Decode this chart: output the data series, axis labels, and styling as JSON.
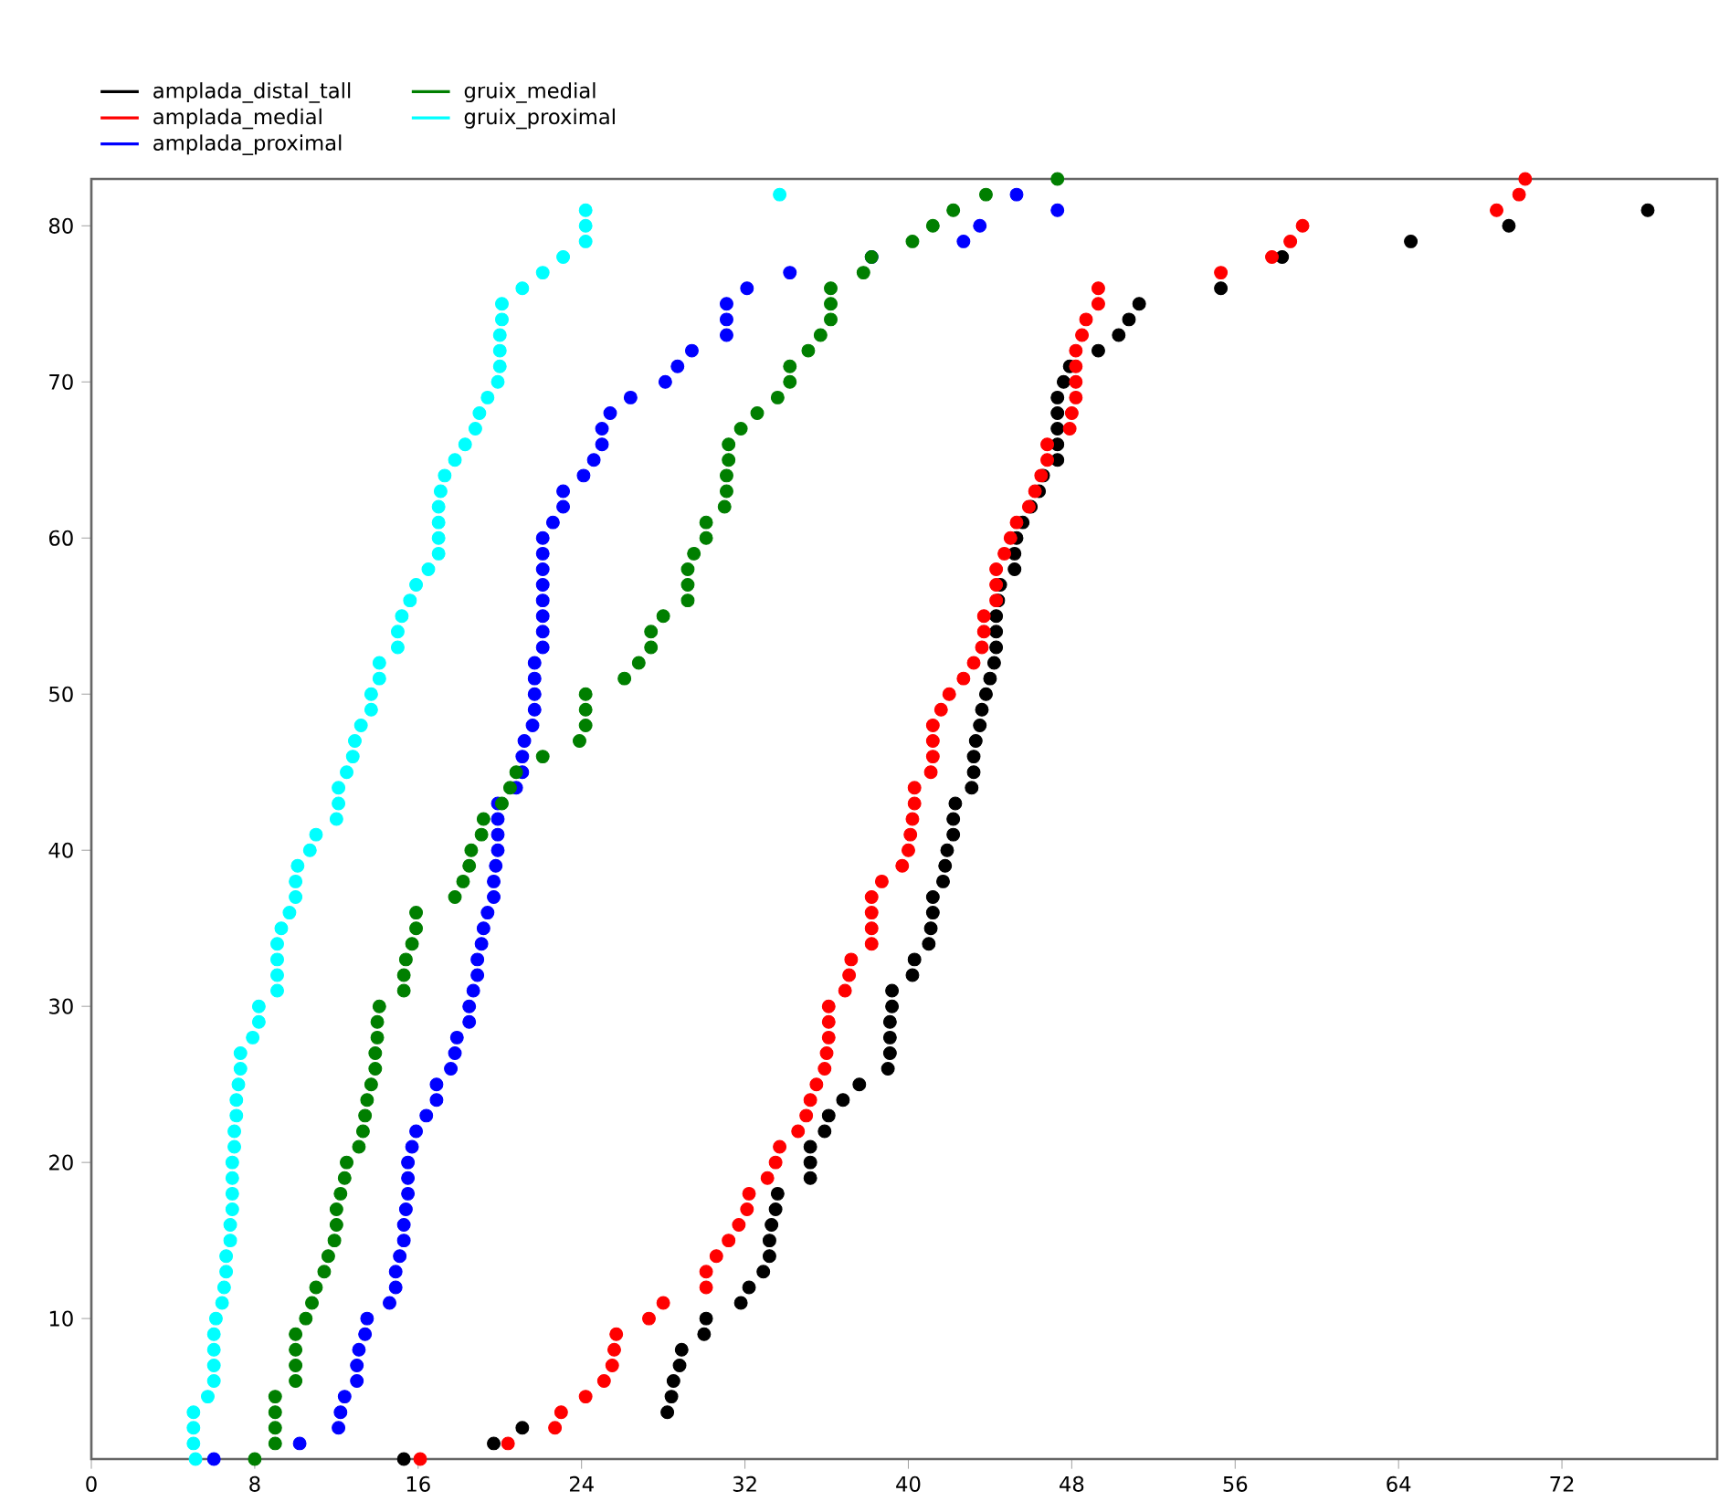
{
  "chart_data": {
    "type": "scatter",
    "legend": "top left",
    "xlim": [
      0,
      79.6
    ],
    "ylim": [
      1,
      83
    ],
    "xticks": [
      0,
      8,
      16,
      24,
      32,
      40,
      48,
      56,
      64,
      72
    ],
    "yticks": [
      10,
      20,
      30,
      40,
      50,
      60,
      70,
      80
    ],
    "series": [
      {
        "name": "amplada_distal_tall",
        "color": "#000000",
        "x": [
          15.3,
          19.7,
          21.1,
          28.2,
          28.4,
          28.5,
          28.8,
          28.9,
          30.0,
          30.1,
          31.8,
          32.2,
          32.9,
          33.2,
          33.2,
          33.3,
          33.5,
          33.6,
          35.2,
          35.2,
          35.2,
          35.9,
          36.1,
          36.8,
          37.6,
          39.0,
          39.1,
          39.1,
          39.1,
          39.2,
          39.2,
          40.2,
          40.3,
          41.0,
          41.1,
          41.2,
          41.2,
          41.7,
          41.8,
          41.9,
          42.2,
          42.2,
          42.3,
          43.1,
          43.2,
          43.2,
          43.3,
          43.5,
          43.6,
          43.8,
          44.0,
          44.2,
          44.3,
          44.3,
          44.3,
          44.4,
          44.5,
          45.2,
          45.2,
          45.3,
          45.6,
          46.0,
          46.4,
          46.6,
          47.3,
          47.3,
          47.3,
          47.3,
          47.3,
          47.6,
          47.9,
          49.3,
          50.3,
          50.8,
          51.3,
          55.3,
          58.3,
          64.6,
          69.4,
          76.2
        ],
        "values": [
          1,
          2,
          3,
          4,
          5,
          6,
          7,
          8,
          9,
          10,
          11,
          12,
          13,
          14,
          15,
          16,
          17,
          18,
          19,
          20,
          21,
          22,
          23,
          24,
          25,
          26,
          27,
          28,
          29,
          30,
          31,
          32,
          33,
          34,
          35,
          36,
          37,
          38,
          39,
          40,
          41,
          42,
          43,
          44,
          45,
          46,
          47,
          48,
          49,
          50,
          51,
          52,
          53,
          54,
          55,
          56,
          57,
          58,
          59,
          60,
          61,
          62,
          63,
          64,
          65,
          66,
          67,
          68,
          69,
          70,
          71,
          72,
          73,
          74,
          75,
          76,
          78,
          79,
          80,
          81
        ]
      },
      {
        "name": "amplada_medial",
        "color": "#ff0000",
        "x": [
          16.1,
          20.4,
          22.7,
          23.0,
          24.2,
          25.1,
          25.5,
          25.6,
          25.7,
          27.3,
          28.0,
          30.1,
          30.1,
          30.6,
          31.2,
          31.7,
          32.1,
          32.2,
          33.1,
          33.5,
          33.7,
          34.6,
          35.0,
          35.2,
          35.5,
          35.9,
          36.0,
          36.1,
          36.1,
          36.1,
          36.9,
          37.1,
          37.2,
          38.2,
          38.2,
          38.2,
          38.2,
          38.7,
          39.7,
          40.0,
          40.1,
          40.2,
          40.3,
          40.3,
          41.1,
          41.2,
          41.2,
          41.2,
          41.6,
          42.0,
          42.7,
          43.2,
          43.6,
          43.7,
          43.7,
          44.3,
          44.3,
          44.3,
          44.7,
          45.0,
          45.3,
          45.9,
          46.2,
          46.5,
          46.8,
          46.8,
          47.9,
          48.0,
          48.2,
          48.2,
          48.2,
          48.2,
          48.5,
          48.7,
          49.3,
          49.3,
          55.3,
          57.8,
          58.7,
          59.3,
          68.8,
          69.9,
          70.2
        ],
        "values": [
          1,
          2,
          3,
          4,
          5,
          6,
          7,
          8,
          9,
          10,
          11,
          12,
          13,
          14,
          15,
          16,
          17,
          18,
          19,
          20,
          21,
          22,
          23,
          24,
          25,
          26,
          27,
          28,
          29,
          30,
          31,
          32,
          33,
          34,
          35,
          36,
          37,
          38,
          39,
          40,
          41,
          42,
          43,
          44,
          45,
          46,
          47,
          48,
          49,
          50,
          51,
          52,
          53,
          54,
          55,
          56,
          57,
          58,
          59,
          60,
          61,
          62,
          63,
          64,
          65,
          66,
          67,
          68,
          69,
          70,
          71,
          72,
          73,
          74,
          75,
          76,
          77,
          78,
          79,
          80,
          81,
          82,
          83
        ]
      },
      {
        "name": "amplada_proximal",
        "color": "#0000ff",
        "x": [
          6.0,
          10.2,
          12.1,
          12.2,
          12.4,
          13.0,
          13.0,
          13.1,
          13.4,
          13.5,
          14.6,
          14.9,
          14.9,
          15.1,
          15.3,
          15.3,
          15.4,
          15.5,
          15.5,
          15.5,
          15.7,
          15.9,
          16.4,
          16.9,
          16.9,
          17.6,
          17.8,
          17.9,
          18.5,
          18.5,
          18.7,
          18.9,
          18.9,
          19.1,
          19.2,
          19.4,
          19.7,
          19.7,
          19.8,
          19.9,
          19.9,
          19.9,
          19.9,
          20.8,
          21.1,
          21.1,
          21.2,
          21.6,
          21.7,
          21.7,
          21.7,
          21.7,
          22.1,
          22.1,
          22.1,
          22.1,
          22.1,
          22.1,
          22.1,
          22.1,
          22.6,
          23.1,
          23.1,
          24.1,
          24.6,
          25.0,
          25.0,
          25.4,
          26.4,
          28.1,
          28.7,
          29.4,
          31.1,
          31.1,
          31.1,
          32.1,
          34.2,
          38.2,
          42.7,
          43.5,
          47.3,
          45.3
        ],
        "values": [
          1,
          2,
          3,
          4,
          5,
          6,
          7,
          8,
          9,
          10,
          11,
          12,
          13,
          14,
          15,
          16,
          17,
          18,
          19,
          20,
          21,
          22,
          23,
          24,
          25,
          26,
          27,
          28,
          29,
          30,
          31,
          32,
          33,
          34,
          35,
          36,
          37,
          38,
          39,
          40,
          41,
          42,
          43,
          44,
          45,
          46,
          47,
          48,
          49,
          50,
          51,
          52,
          53,
          54,
          55,
          56,
          57,
          58,
          59,
          60,
          61,
          62,
          63,
          64,
          65,
          66,
          67,
          68,
          69,
          70,
          71,
          72,
          73,
          74,
          75,
          76,
          77,
          78,
          79,
          80,
          81,
          82
        ]
      },
      {
        "name": "gruix_medial",
        "color": "#007f00",
        "x": [
          8.0,
          9.0,
          9.0,
          9.0,
          9.0,
          10.0,
          10.0,
          10.0,
          10.0,
          10.5,
          10.8,
          11.0,
          11.4,
          11.6,
          11.9,
          12.0,
          12.0,
          12.2,
          12.4,
          12.5,
          13.1,
          13.3,
          13.4,
          13.5,
          13.7,
          13.9,
          13.9,
          14.0,
          14.0,
          14.1,
          15.3,
          15.3,
          15.4,
          15.7,
          15.9,
          15.9,
          17.8,
          18.2,
          18.5,
          18.6,
          19.1,
          19.2,
          20.1,
          20.5,
          20.8,
          22.1,
          23.9,
          24.2,
          24.2,
          24.2,
          26.1,
          26.8,
          27.4,
          27.4,
          28.0,
          29.2,
          29.2,
          29.2,
          29.5,
          30.1,
          30.1,
          31.0,
          31.1,
          31.1,
          31.2,
          31.2,
          31.8,
          32.6,
          33.6,
          34.2,
          34.2,
          35.1,
          35.7,
          36.2,
          36.2,
          36.2,
          37.8,
          38.2,
          40.2,
          41.2,
          42.2,
          43.8,
          47.3
        ],
        "values": [
          1,
          2,
          3,
          4,
          5,
          6,
          7,
          8,
          9,
          10,
          11,
          12,
          13,
          14,
          15,
          16,
          17,
          18,
          19,
          20,
          21,
          22,
          23,
          24,
          25,
          26,
          27,
          28,
          29,
          30,
          31,
          32,
          33,
          34,
          35,
          36,
          37,
          38,
          39,
          40,
          41,
          42,
          43,
          44,
          45,
          46,
          47,
          48,
          49,
          50,
          51,
          52,
          53,
          54,
          55,
          56,
          57,
          58,
          59,
          60,
          61,
          62,
          63,
          64,
          65,
          66,
          67,
          68,
          69,
          70,
          71,
          72,
          73,
          74,
          75,
          76,
          77,
          78,
          79,
          80,
          81,
          82,
          83
        ]
      },
      {
        "name": "gruix_proximal",
        "color": "#00ffff",
        "x": [
          5.1,
          5.0,
          5.0,
          5.0,
          5.7,
          6.0,
          6.0,
          6.0,
          6.0,
          6.1,
          6.4,
          6.5,
          6.6,
          6.6,
          6.8,
          6.8,
          6.9,
          6.9,
          6.9,
          6.9,
          7.0,
          7.0,
          7.1,
          7.1,
          7.2,
          7.3,
          7.3,
          7.9,
          8.2,
          8.2,
          9.1,
          9.1,
          9.1,
          9.1,
          9.3,
          9.7,
          10.0,
          10.0,
          10.1,
          10.7,
          11.0,
          12.0,
          12.1,
          12.1,
          12.5,
          12.8,
          12.9,
          13.2,
          13.7,
          13.7,
          14.1,
          14.1,
          15.0,
          15.0,
          15.2,
          15.6,
          15.9,
          16.5,
          17.0,
          17.0,
          17.0,
          17.0,
          17.1,
          17.3,
          17.8,
          18.3,
          18.8,
          19.0,
          19.4,
          19.9,
          20.0,
          20.0,
          20.0,
          20.1,
          20.1,
          21.1,
          22.1,
          23.1,
          24.2,
          24.2,
          24.2,
          33.7
        ],
        "values": [
          1,
          2,
          3,
          4,
          5,
          6,
          7,
          8,
          9,
          10,
          11,
          12,
          13,
          14,
          15,
          16,
          17,
          18,
          19,
          20,
          21,
          22,
          23,
          24,
          25,
          26,
          27,
          28,
          29,
          30,
          31,
          32,
          33,
          34,
          35,
          36,
          37,
          38,
          39,
          40,
          41,
          42,
          43,
          44,
          45,
          46,
          47,
          48,
          49,
          50,
          51,
          52,
          53,
          54,
          55,
          56,
          57,
          58,
          59,
          60,
          61,
          62,
          63,
          64,
          65,
          66,
          67,
          68,
          69,
          70,
          71,
          72,
          73,
          74,
          75,
          76,
          77,
          78,
          79,
          80,
          81,
          82
        ]
      }
    ]
  }
}
